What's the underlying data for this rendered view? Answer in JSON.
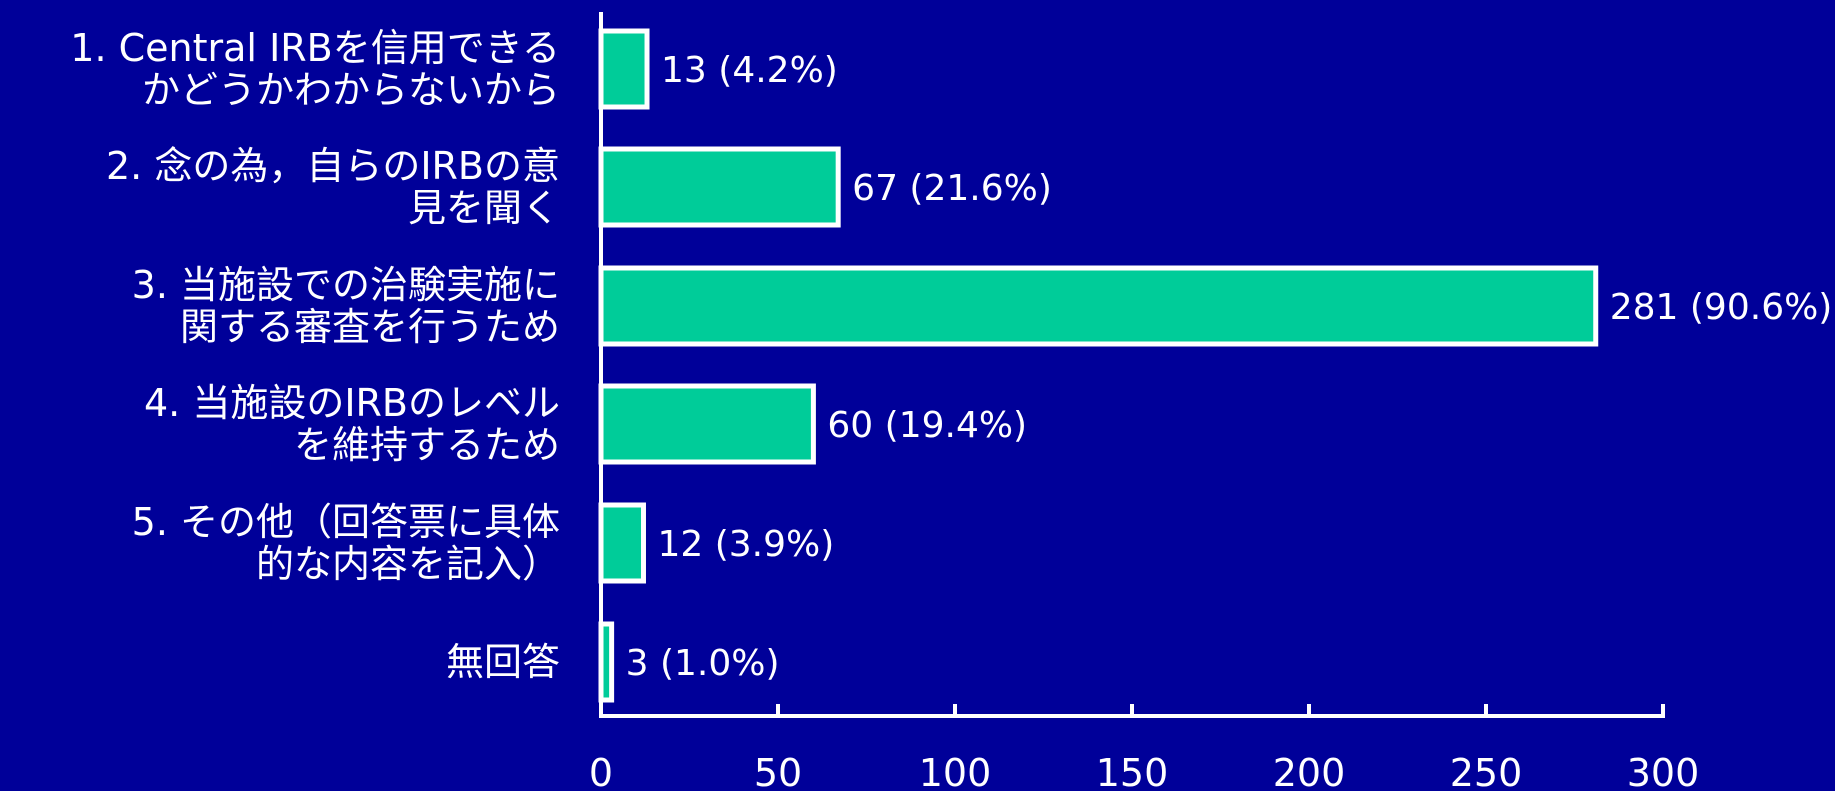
{
  "chart_data": {
    "type": "bar",
    "orientation": "horizontal",
    "categories": [
      [
        "1. Central IRBを信用できる",
        "かどうかわからないから"
      ],
      [
        "2. 念の為，自らのIRBの意",
        "見を聞く"
      ],
      [
        "3. 当施設での治験実施に",
        "関する審査を行うため"
      ],
      [
        "4. 当施設のIRBのレベル",
        "を維持するため"
      ],
      [
        "5. その他（回答票に具体",
        "的な内容を記入）"
      ],
      [
        "無回答"
      ]
    ],
    "values": [
      13,
      67,
      281,
      60,
      12,
      3
    ],
    "data_labels": [
      "13 (4.2%)",
      "67 (21.6%)",
      "281 (90.6%)",
      "60 (19.4%)",
      "12 (3.9%)",
      "3 (1.0%)"
    ],
    "xlim": [
      0,
      300
    ],
    "xticks": [
      "0",
      "50",
      "100",
      "150",
      "200",
      "250",
      "300"
    ],
    "grid": false,
    "colors": {
      "background": "#000099",
      "bar_fill": "#00CC99",
      "bar_stroke": "#ffffff",
      "axis": "#ffffff",
      "text": "#ffffff"
    }
  }
}
